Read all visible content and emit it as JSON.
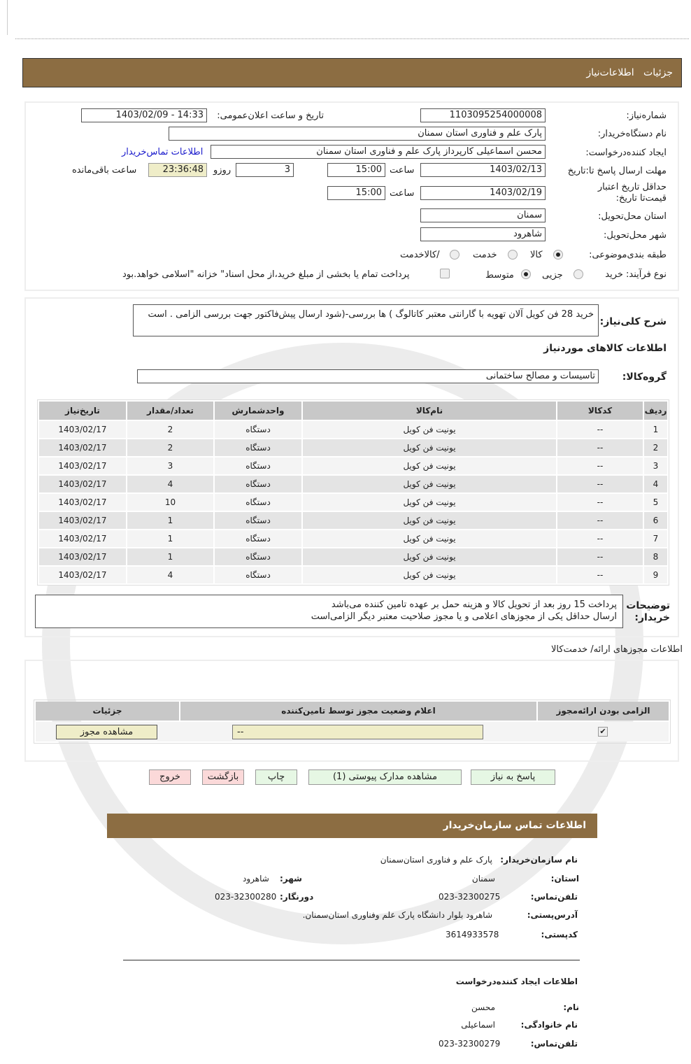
{
  "header": {
    "title": "جزئیات   اطلاعات‌نیاز"
  },
  "form": {
    "need_number_label": "شماره‌نیاز:",
    "need_number": "1103095254000008",
    "announce_label": "تاریخ و ساعت اعلان‌عمومی:",
    "announce_value": "1403/02/09 - 14:33",
    "buyer_label": "نام دستگاه‌خریدار:",
    "buyer": "پارک علم و فناوری استان سمنان",
    "creator_label": "ایجاد کننده‌درخواست:",
    "creator": "محسن اسماعیلی کارپرداز پارک علم و فناوری استان سمنان",
    "contact_link": "اطلاعات تماس‌خریدار",
    "deadline_label": "مهلت ارسال پاسخ تا:تاریخ",
    "deadline_date": "1403/02/13",
    "time_label": "ساعت",
    "deadline_time": "15:00",
    "days_value": "3",
    "days_label": "روزو",
    "remaining_time": "23:36:48",
    "remaining_label": "ساعت باقی‌مانده",
    "validity_label": "حداقل تاریخ اعتبار قیمت‌تا تاریخ:",
    "validity_date": "1403/02/19",
    "validity_time": "15:00",
    "province_label": "استان محل‌تحویل:",
    "province": "سمنان",
    "city_label": "شهر محل‌تحویل:",
    "city": "شاهرود",
    "category_label": "طبقه بندی‌موضوعی:",
    "category_options": [
      "کالا",
      "خدمت",
      "/کالاخدمت"
    ],
    "category_selected": "کالا",
    "process_label": "نوع فرآیند: خرید",
    "process_options": [
      "جزیی",
      "متوسط"
    ],
    "process_selected": "متوسط",
    "treasury_note": "پرداخت تمام یا بخشی از مبلغ خرید،از محل اسناد\" خزانه \"اسلامی خواهد.بود"
  },
  "summary": {
    "label": "شرح کلی‌نیاز:",
    "text": "خرید 28 فن کویل آلان تهویه با گارانتی معتبر کاتالوگ ) ها بررسی-(شود ارسال پیش‌فاکتور جهت بررسی الزامی . است"
  },
  "goods": {
    "section_title": "اطلاعات کالاهای مورد‌نیاز",
    "group_label": "گروه‌کالا:",
    "group": "تاسیسات و مصالح ساختمانی",
    "columns": [
      "ردیف",
      "کدکالا",
      "نام‌کالا",
      "واحدشمارش",
      "تعداد/مقدار",
      "تاریخ‌نیاز"
    ],
    "rows": [
      [
        "1",
        "--",
        "یونیت فن کویل",
        "دستگاه",
        "2",
        "1403/02/17"
      ],
      [
        "2",
        "--",
        "یونیت فن کویل",
        "دستگاه",
        "2",
        "1403/02/17"
      ],
      [
        "3",
        "--",
        "یونیت فن کویل",
        "دستگاه",
        "3",
        "1403/02/17"
      ],
      [
        "4",
        "--",
        "یونیت فن کویل",
        "دستگاه",
        "4",
        "1403/02/17"
      ],
      [
        "5",
        "--",
        "یونیت فن کویل",
        "دستگاه",
        "10",
        "1403/02/17"
      ],
      [
        "6",
        "--",
        "یونیت فن کویل",
        "دستگاه",
        "1",
        "1403/02/17"
      ],
      [
        "7",
        "--",
        "یونیت فن کویل",
        "دستگاه",
        "1",
        "1403/02/17"
      ],
      [
        "8",
        "--",
        "یونیت فن کویل",
        "دستگاه",
        "1",
        "1403/02/17"
      ],
      [
        "9",
        "--",
        "یونیت فن کویل",
        "دستگاه",
        "4",
        "1403/02/17"
      ]
    ]
  },
  "buyer_notes": {
    "label": "توضیحات خریدار:",
    "lines": [
      "پرداخت 15 روز بعد از تحویل کالا و هزینه حمل بر عهده تامین کننده می‌باشد",
      "ارسال حداقل یکی از مجوزهای اعلامی و یا مجوز صلاحیت معتبر دیگر الزامی‌است"
    ]
  },
  "permits": {
    "section_title": "اطلاعات مجوزهای ارائه/ خدمت‌کالا",
    "columns": [
      "الزامی بودن ارائه‌مجوز",
      "اعلام وضعیت مجوز توسط تامین‌کننده",
      "جزئیات"
    ],
    "status": "--",
    "required": true,
    "view_button": "مشاهده مجوز"
  },
  "buttons": {
    "reply": "پاسخ به نیاز",
    "attachments": "مشاهده مدارک پیوستی (1)",
    "print": "چاپ",
    "back": "بازگشت",
    "exit": "خروج"
  },
  "contact": {
    "title": "اطلاعات تماس سازمان‌خریدار",
    "org_label": "نام سازمان‌خریدار:",
    "org": "پارک علم و فناوری استان‌سمنان",
    "province_label": "استان:",
    "province": "سمنان",
    "city_label": "شهر:",
    "city": "شاهرود",
    "phone_label": "تلفن‌تماس:",
    "phone": "023-32300275",
    "fax_label": "دورنگار:",
    "fax": "023-32300280",
    "address_label": "آدرس‌پستی:",
    "address": "شاهرود بلوار دانشگاه پارک علم وفناوری استان‌سمنان.",
    "postal_label": "کدپستی:",
    "postal": "3614933578",
    "creator_title": "اطلاعات ایجاد کننده‌درخواست",
    "name_label": "نام:",
    "name": "محسن",
    "family_label": "نام خانوادگی:",
    "family": "اسماعیلی",
    "creator_phone_label": "تلفن‌تماس:",
    "creator_phone": "023-32300279"
  },
  "colors": {
    "brand": "#8c6d42",
    "link": "#1a1acc",
    "cream": "#efedc8",
    "green_button": "#e6f7e4",
    "pink_button": "#fbd9d9"
  }
}
